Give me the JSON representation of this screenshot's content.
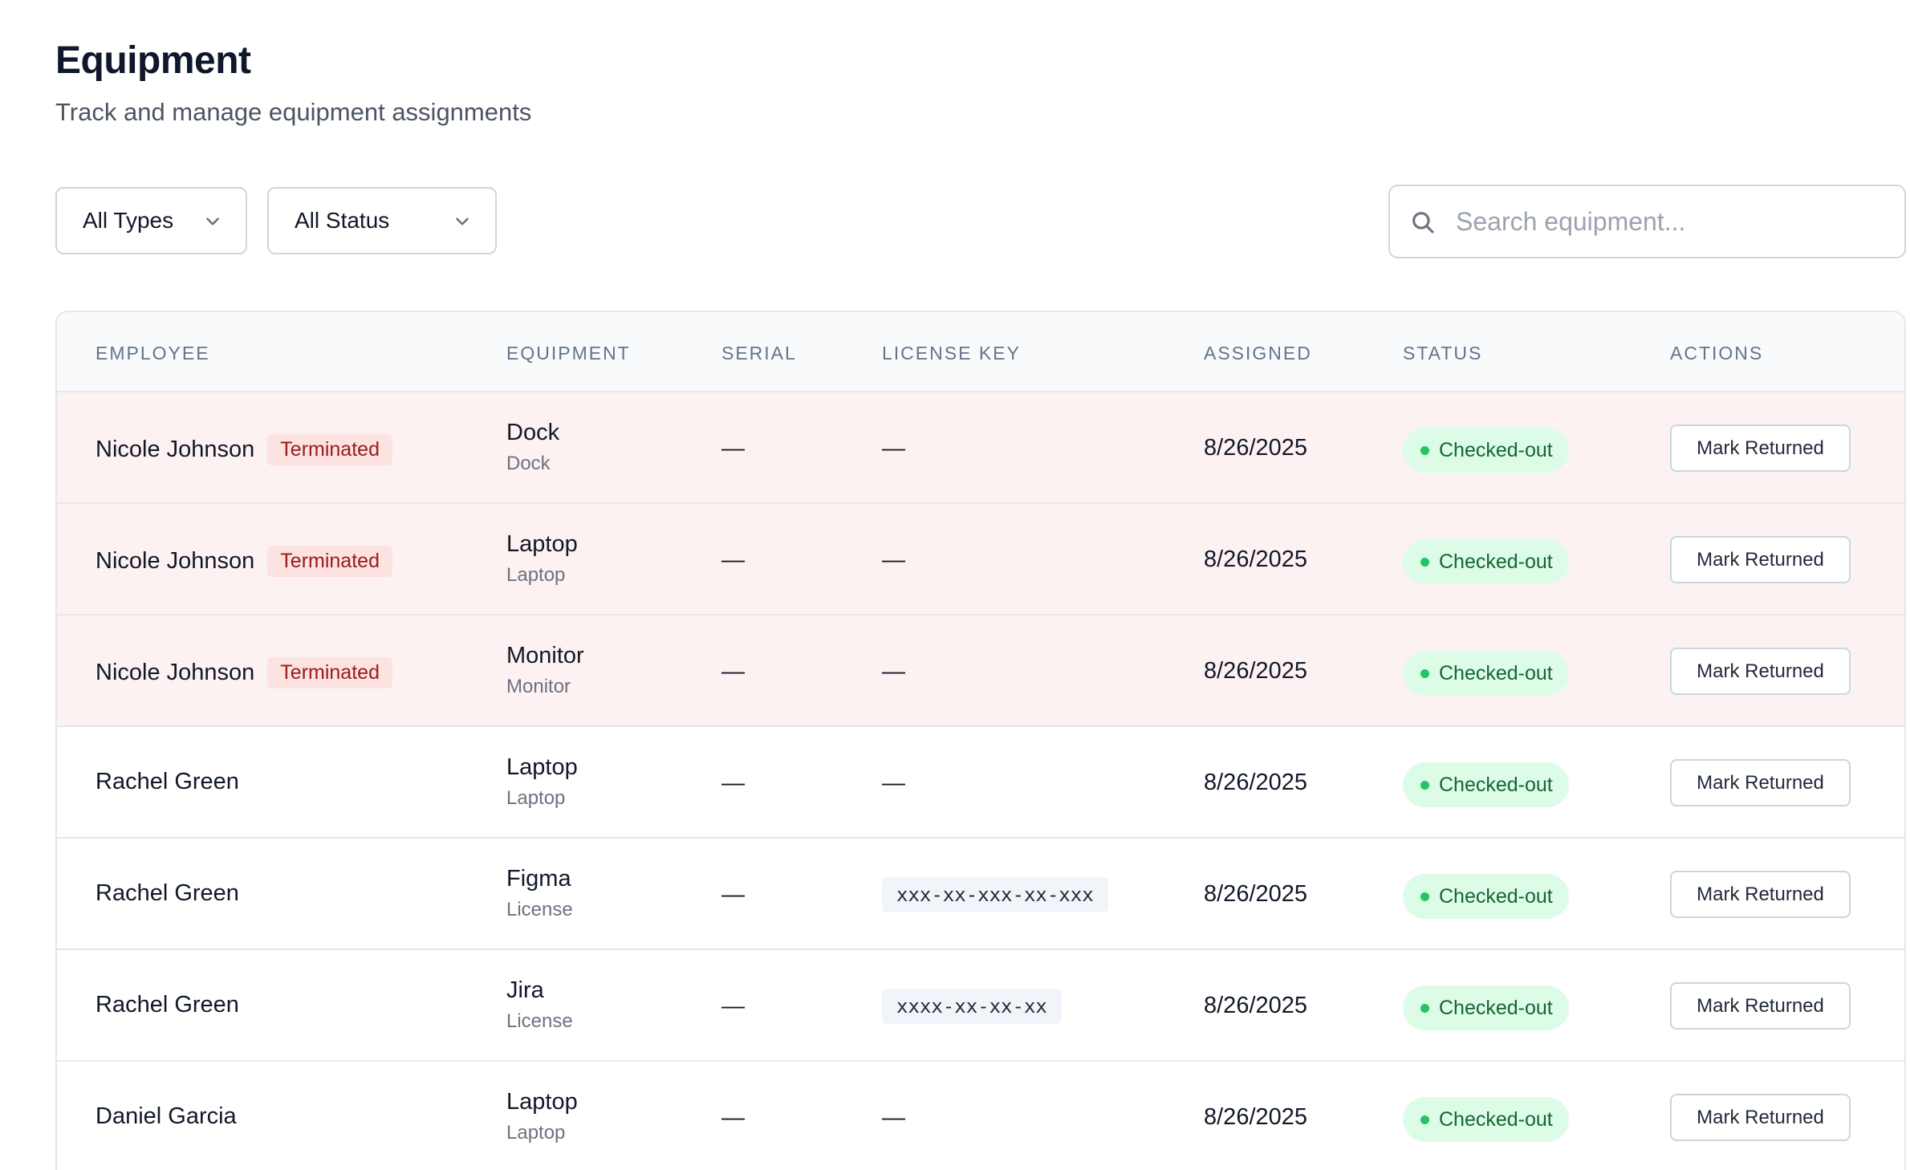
{
  "header": {
    "title": "Equipment",
    "subtitle": "Track and manage equipment assignments"
  },
  "filters": {
    "type_selected": "All Types",
    "status_selected": "All Status",
    "chevron_icon": "chevron-down-icon"
  },
  "search": {
    "placeholder": "Search equipment...",
    "value": "",
    "icon": "search-icon"
  },
  "table": {
    "columns": [
      "EMPLOYEE",
      "EQUIPMENT",
      "SERIAL",
      "LICENSE KEY",
      "ASSIGNED",
      "STATUS",
      "ACTIONS"
    ],
    "rows": [
      {
        "employee": "Nicole Johnson",
        "badge": "Terminated",
        "equipment": "Dock",
        "type": "Dock",
        "serial": "—",
        "license": "—",
        "assigned": "8/26/2025",
        "status": "Checked-out",
        "action": "Mark Returned"
      },
      {
        "employee": "Nicole Johnson",
        "badge": "Terminated",
        "equipment": "Laptop",
        "type": "Laptop",
        "serial": "—",
        "license": "—",
        "assigned": "8/26/2025",
        "status": "Checked-out",
        "action": "Mark Returned"
      },
      {
        "employee": "Nicole Johnson",
        "badge": "Terminated",
        "equipment": "Monitor",
        "type": "Monitor",
        "serial": "—",
        "license": "—",
        "assigned": "8/26/2025",
        "status": "Checked-out",
        "action": "Mark Returned"
      },
      {
        "employee": "Rachel Green",
        "badge": "",
        "equipment": "Laptop",
        "type": "Laptop",
        "serial": "—",
        "license": "—",
        "assigned": "8/26/2025",
        "status": "Checked-out",
        "action": "Mark Returned"
      },
      {
        "employee": "Rachel Green",
        "badge": "",
        "equipment": "Figma",
        "type": "License",
        "serial": "—",
        "license": "xxx-xx-xxx-xx-xxx",
        "assigned": "8/26/2025",
        "status": "Checked-out",
        "action": "Mark Returned"
      },
      {
        "employee": "Rachel Green",
        "badge": "",
        "equipment": "Jira",
        "type": "License",
        "serial": "—",
        "license": "xxxx-xx-xx-xx",
        "assigned": "8/26/2025",
        "status": "Checked-out",
        "action": "Mark Returned"
      },
      {
        "employee": "Daniel Garcia",
        "badge": "",
        "equipment": "Laptop",
        "type": "Laptop",
        "serial": "—",
        "license": "—",
        "assigned": "8/26/2025",
        "status": "Checked-out",
        "action": "Mark Returned"
      }
    ]
  },
  "colors": {
    "terminated_row_bg": "#fdf2f2",
    "terminated_badge_bg": "#fde2e2",
    "terminated_badge_text": "#991b1b",
    "status_bg": "#dcfce7",
    "status_text": "#166534",
    "status_dot": "#22c55e"
  }
}
